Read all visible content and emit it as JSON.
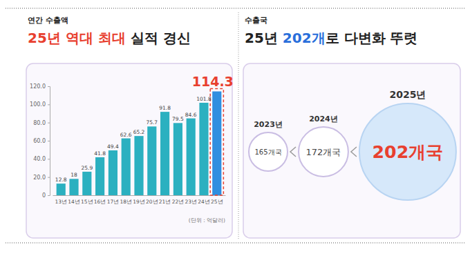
{
  "chart_data": [
    {
      "type": "bar",
      "subtitle": "연간 수출액",
      "title": [
        "25년 역대 최대",
        " 실적 경신"
      ],
      "categories": [
        "13년",
        "14년",
        "15년",
        "16년",
        "17년",
        "18년",
        "19년",
        "20년",
        "21년",
        "22년",
        "23년",
        "24년",
        "25년"
      ],
      "values": [
        12.8,
        18,
        25.9,
        41.8,
        49.4,
        62.6,
        65.2,
        75.7,
        91.8,
        79.5,
        84.6,
        101.8,
        114.3
      ],
      "colors": [
        "#2bb0c0",
        "#2bb0c0",
        "#2bb0c0",
        "#2bb0c0",
        "#2bb0c0",
        "#2bb0c0",
        "#2bb0c0",
        "#2bb0c0",
        "#2bb0c0",
        "#2bb0c0",
        "#2bb0c0",
        "#2bb0c0",
        "#2f8fe0"
      ],
      "ylim": [
        0,
        120
      ],
      "yticks": [
        0,
        {
          "value": 20,
          "label": "20.0"
        },
        {
          "value": 40,
          "label": "40.0"
        },
        {
          "value": 60,
          "label": "60.0"
        },
        {
          "value": 80,
          "label": "80.0"
        },
        {
          "value": 100,
          "label": "100.0"
        },
        {
          "value": 120,
          "label": "120.0"
        }
      ],
      "grid": false,
      "data_labels": true,
      "annotations": [
        "(단위 : 억달러)"
      ]
    },
    {
      "type": "bubble",
      "subtitle": "수출국",
      "title": [
        "25년 ",
        "202개",
        "로 다변화 뚜렷"
      ],
      "categories": [
        "2023년",
        "2024년",
        "2025년"
      ],
      "values": [
        165,
        172,
        202
      ],
      "value_labels": [
        "165개국",
        "172개국",
        "202개국"
      ],
      "colors": [
        "#ffffff",
        "#ffffff",
        "#d6e8fa"
      ],
      "data_labels": true,
      "tick_labels": false
    }
  ]
}
